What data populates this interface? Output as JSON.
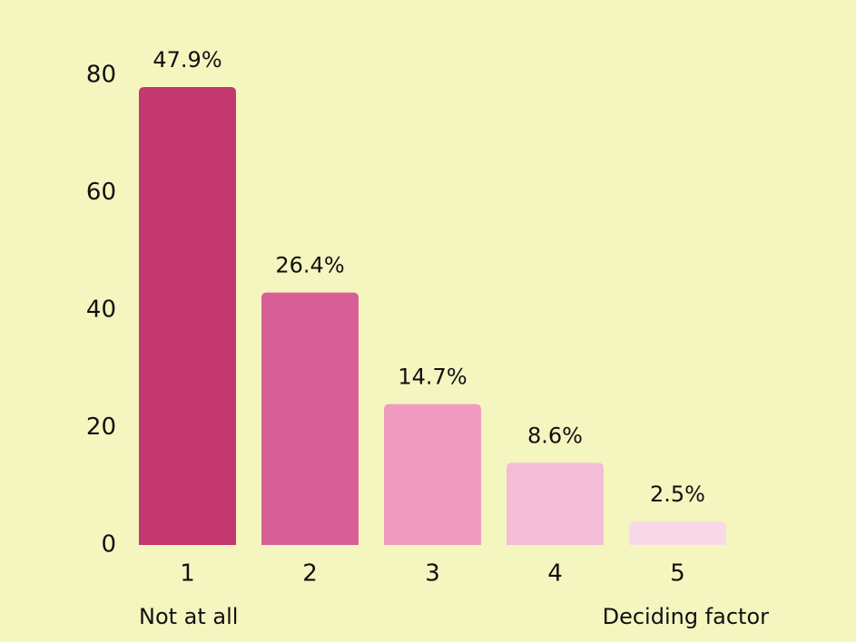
{
  "chart_data": {
    "type": "bar",
    "categories": [
      "1",
      "2",
      "3",
      "4",
      "5"
    ],
    "values": [
      78,
      43,
      24,
      14,
      4
    ],
    "percent_labels": [
      "47.9%",
      "26.4%",
      "14.7%",
      "8.6%",
      "2.5%"
    ],
    "colors": [
      "#c2386f",
      "#d95f98",
      "#f29bc1",
      "#f5bcd6",
      "#f9d9e8"
    ],
    "ylim": [
      0,
      80
    ],
    "yticks": [
      0,
      20,
      40,
      60,
      80
    ],
    "grid": false,
    "annotations": [
      "Not at all",
      "Deciding factor"
    ]
  }
}
